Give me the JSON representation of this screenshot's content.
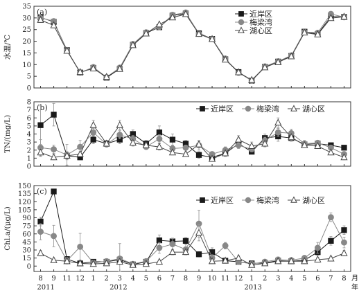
{
  "colors": {
    "near_shore": "#1a1a1a",
    "meiliang": "#888888",
    "center": "#444444",
    "axis": "#333333"
  },
  "x_axis": {
    "month_ticks": [
      "8",
      "9",
      "11",
      "12",
      "1",
      "2",
      "3",
      "4",
      "5",
      "6",
      "7",
      "8",
      "9",
      "10",
      "11",
      "12",
      "1",
      "2",
      "3",
      "4",
      "5",
      "6",
      "7",
      "8"
    ],
    "year_labels": [
      "2011",
      "2012",
      "2013"
    ],
    "unit_label": "月\n年"
  },
  "chart_data": [
    {
      "type": "line",
      "panel_label": "(a)",
      "ylabel": "水温/℃",
      "ylim": [
        0,
        35
      ],
      "yticks": [
        0,
        5,
        10,
        15,
        20,
        25,
        30,
        35
      ],
      "legend": {
        "placement": "top-center",
        "entries": [
          "近岸区",
          "梅梁湾",
          "湖心区"
        ]
      },
      "series": [
        {
          "name": "近岸区",
          "marker": "square",
          "values": [
            30.2,
            28.3,
            16.2,
            6.6,
            8.6,
            4.4,
            8.2,
            18.5,
            23.5,
            26.0,
            31.0,
            31.9,
            23.4,
            21.0,
            12.3,
            6.8,
            3.1,
            9.0,
            11.3,
            13.7,
            24.1,
            23.1,
            30.6,
            30.4
          ],
          "errors": [
            0.4,
            0.4,
            0.3,
            0.3,
            0.3,
            0.3,
            0.3,
            0.3,
            0.4,
            0.4,
            0.4,
            0.4,
            0.4,
            0.4,
            0.3,
            0.3,
            0.3,
            0.3,
            0.3,
            0.3,
            0.4,
            0.4,
            0.4,
            0.4
          ]
        },
        {
          "name": "梅梁湾",
          "marker": "circle",
          "values": [
            30.0,
            28.6,
            16.1,
            6.5,
            8.9,
            4.6,
            8.7,
            18.8,
            23.8,
            26.1,
            31.3,
            32.3,
            23.2,
            21.0,
            12.6,
            6.5,
            3.2,
            9.2,
            11.4,
            13.9,
            24.0,
            23.6,
            31.7,
            30.3
          ],
          "errors": [
            0.4,
            0.4,
            0.3,
            0.3,
            0.3,
            0.3,
            0.3,
            0.3,
            0.4,
            0.4,
            0.4,
            0.4,
            0.4,
            0.4,
            0.3,
            0.3,
            0.3,
            0.3,
            0.3,
            0.3,
            0.4,
            0.4,
            0.4,
            0.4
          ]
        },
        {
          "name": "湖心区",
          "marker": "triangle",
          "values": [
            29.1,
            26.8,
            15.9,
            6.8,
            8.3,
            4.7,
            8.1,
            18.3,
            23.3,
            27.2,
            30.2,
            31.6,
            23.1,
            20.9,
            12.1,
            6.7,
            3.4,
            8.8,
            11.0,
            13.5,
            23.7,
            22.9,
            29.9,
            30.5
          ],
          "errors": [
            0.4,
            0.4,
            0.3,
            0.3,
            0.3,
            0.3,
            0.3,
            0.3,
            0.4,
            0.4,
            0.4,
            0.4,
            0.4,
            0.4,
            0.3,
            0.3,
            0.3,
            0.3,
            0.3,
            0.3,
            0.4,
            0.4,
            0.4,
            0.4
          ]
        }
      ]
    },
    {
      "type": "line",
      "panel_label": "(b)",
      "ylabel": "TN/(mg/L)",
      "ylim": [
        0,
        8
      ],
      "yticks": [
        0,
        1,
        2,
        3,
        4,
        5,
        6,
        7,
        8
      ],
      "legend": {
        "placement": "top-right",
        "entries": [
          "近岸区",
          "梅梁湾",
          "湖心区"
        ]
      },
      "series": [
        {
          "name": "近岸区",
          "marker": "square",
          "values": [
            5.1,
            6.4,
            1.3,
            1.1,
            3.3,
            2.8,
            3.3,
            4.0,
            2.8,
            4.2,
            3.3,
            2.8,
            1.4,
            1.1,
            1.6,
            2.8,
            1.8,
            3.5,
            3.7,
            3.5,
            2.7,
            2.8,
            2.6,
            2.3
          ],
          "errors": [
            2.4,
            1.4,
            0.5,
            0.3,
            0.5,
            0.4,
            0.5,
            0.5,
            0.4,
            0.8,
            0.7,
            0.4,
            0.4,
            0.3,
            0.4,
            0.5,
            0.3,
            0.5,
            0.6,
            0.4,
            0.3,
            0.3,
            0.3,
            0.3
          ]
        },
        {
          "name": "梅梁湾",
          "marker": "circle",
          "values": [
            2.3,
            2.1,
            1.4,
            2.4,
            4.2,
            2.7,
            3.9,
            3.4,
            2.4,
            3.4,
            2.2,
            2.3,
            2.6,
            1.5,
            2.0,
            2.6,
            2.1,
            3.2,
            4.2,
            4.1,
            2.8,
            2.9,
            2.3,
            1.5
          ],
          "errors": [
            1.0,
            0.5,
            1.3,
            0.8,
            0.5,
            0.3,
            0.5,
            0.4,
            0.3,
            0.5,
            0.4,
            0.3,
            0.6,
            0.3,
            0.4,
            0.4,
            0.3,
            0.4,
            0.5,
            0.5,
            0.4,
            0.3,
            0.3,
            0.3
          ]
        },
        {
          "name": "湖心区",
          "marker": "triangle",
          "values": [
            1.7,
            1.1,
            1.3,
            1.5,
            5.1,
            2.8,
            5.1,
            2.9,
            2.6,
            2.4,
            1.7,
            1.5,
            2.7,
            0.9,
            1.6,
            3.3,
            2.5,
            2.8,
            5.4,
            3.6,
            2.6,
            2.5,
            1.7,
            1.1
          ],
          "errors": [
            0.5,
            0.3,
            0.4,
            0.3,
            0.6,
            0.4,
            0.6,
            0.4,
            0.3,
            0.4,
            0.3,
            0.3,
            0.4,
            0.3,
            0.3,
            0.5,
            0.5,
            0.4,
            0.6,
            0.4,
            0.3,
            0.3,
            0.3,
            0.3
          ]
        }
      ]
    },
    {
      "type": "line",
      "panel_label": "(c)",
      "ylabel": "Chl.a/(μg/L)",
      "ylim": [
        -10,
        150
      ],
      "yticks": [
        0,
        15,
        30,
        45,
        60,
        75,
        90,
        105,
        120,
        135,
        150
      ],
      "legend": {
        "placement": "top-right",
        "entries": [
          "近岸区",
          "梅梁湾",
          "湖心区"
        ]
      },
      "series": [
        {
          "name": "近岸区",
          "marker": "square",
          "values": [
            83,
            139,
            13,
            5,
            8,
            8,
            12,
            3,
            8,
            48,
            46,
            47,
            22,
            26,
            10,
            8,
            5,
            6,
            10,
            9,
            11,
            26,
            47,
            67
          ],
          "errors": [
            8,
            4,
            3,
            2,
            2,
            2,
            3,
            2,
            2,
            10,
            6,
            6,
            5,
            8,
            3,
            3,
            2,
            2,
            3,
            3,
            3,
            6,
            8,
            8
          ]
        },
        {
          "name": "梅梁湾",
          "marker": "circle",
          "values": [
            64,
            56,
            10,
            36,
            6,
            9,
            14,
            4,
            9,
            34,
            41,
            31,
            79,
            15,
            38,
            8,
            4,
            8,
            12,
            11,
            15,
            34,
            91,
            44
          ],
          "errors": [
            15,
            20,
            6,
            25,
            5,
            5,
            28,
            3,
            5,
            10,
            10,
            10,
            25,
            6,
            6,
            5,
            3,
            4,
            5,
            4,
            5,
            10,
            8,
            10
          ]
        },
        {
          "name": "湖心区",
          "marker": "triangle",
          "values": [
            24,
            11,
            9,
            5,
            4,
            5,
            8,
            2,
            4,
            8,
            26,
            26,
            62,
            9,
            10,
            15,
            2,
            5,
            9,
            9,
            9,
            12,
            14,
            24
          ],
          "errors": [
            5,
            3,
            3,
            2,
            2,
            2,
            3,
            2,
            2,
            3,
            5,
            5,
            15,
            4,
            3,
            4,
            2,
            2,
            3,
            3,
            3,
            4,
            4,
            5
          ]
        }
      ]
    }
  ]
}
